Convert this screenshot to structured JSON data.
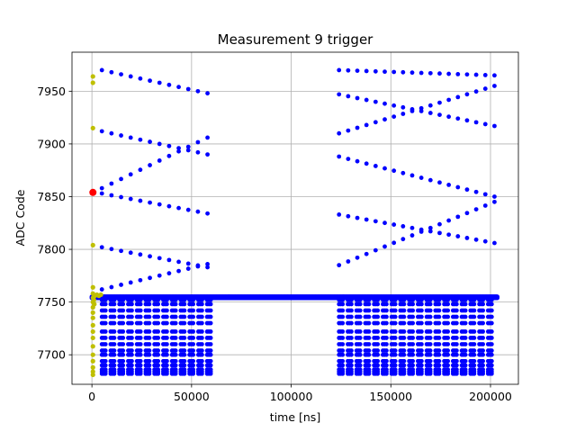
{
  "chart_data": {
    "type": "scatter",
    "title": "Measurement 9 trigger",
    "xlabel": "time [ns]",
    "ylabel": "ADC Code",
    "xlim": [
      -10000,
      214000
    ],
    "ylim": [
      7672,
      7987
    ],
    "xticks": [
      0,
      50000,
      100000,
      150000,
      200000
    ],
    "xtick_labels": [
      "0",
      "50000",
      "100000",
      "150000",
      "200000"
    ],
    "yticks": [
      7700,
      7750,
      7800,
      7850,
      7900,
      7950
    ],
    "ytick_labels": [
      "7700",
      "7750",
      "7800",
      "7850",
      "7900",
      "7950"
    ],
    "grid": true,
    "colors": {
      "series_main": "#0000ff",
      "series_early": "#bfbf00",
      "trigger": "#ff0000",
      "grid": "#b0b0b0"
    },
    "series": [
      {
        "color": "blue",
        "description_of_pattern": "baseline run at ~7755 across the full window, plus zig-zag ramp groups in 0-60000 ns and 124000-202000 ns",
        "baseline": {
          "x_start": 0,
          "x_end": 203500,
          "y": 7755
        },
        "ramp_groups": [
          {
            "x_start": 5000,
            "x_end": 58000,
            "n": 12,
            "y_start": 7970,
            "y_end": 7948,
            "mid": 7962
          },
          {
            "x_start": 5000,
            "x_end": 58000,
            "n": 12,
            "y_start": 7912,
            "y_end": 7890,
            "mid": 7897
          },
          {
            "x_start": 5000,
            "x_end": 58000,
            "n": 12,
            "y_start": 7858,
            "y_end": 7906,
            "mid": 7897
          },
          {
            "x_start": 5000,
            "x_end": 58000,
            "n": 12,
            "y_start": 7853,
            "y_end": 7834,
            "mid": 7843
          },
          {
            "x_start": 5000,
            "x_end": 58000,
            "n": 12,
            "y_start": 7802,
            "y_end": 7783,
            "mid": 7792
          },
          {
            "x_start": 5000,
            "x_end": 58000,
            "n": 12,
            "y_start": 7762,
            "y_end": 7786,
            "mid": 7774
          },
          {
            "x_start": 124000,
            "x_end": 202000,
            "n": 18,
            "y_start": 7970,
            "y_end": 7965,
            "mid": 7970
          },
          {
            "x_start": 124000,
            "x_end": 202000,
            "n": 18,
            "y_start": 7947,
            "y_end": 7917,
            "mid": 7933
          },
          {
            "x_start": 124000,
            "x_end": 202000,
            "n": 18,
            "y_start": 7910,
            "y_end": 7955,
            "mid": 7933
          },
          {
            "x_start": 124000,
            "x_end": 202000,
            "n": 18,
            "y_start": 7888,
            "y_end": 7850,
            "mid": 7868
          },
          {
            "x_start": 124000,
            "x_end": 202000,
            "n": 18,
            "y_start": 7833,
            "y_end": 7806,
            "mid": 7820
          },
          {
            "x_start": 124000,
            "x_end": 202000,
            "n": 18,
            "y_start": 7785,
            "y_end": 7845,
            "mid": 7815
          }
        ],
        "lower_columns": {
          "group1": {
            "x_start": 5000,
            "x_end": 58000,
            "spacing": 4400
          },
          "group2": {
            "x_start": 124000,
            "x_end": 202000,
            "spacing": 4400
          },
          "y_values": [
            7682,
            7684,
            7686,
            7690,
            7694,
            7700,
            7704,
            7710,
            7716,
            7722,
            7730,
            7736,
            7742,
            7748,
            7752
          ]
        }
      },
      {
        "color": "olive",
        "description_of_pattern": "early samples near x = 0",
        "points": [
          [
            500,
            7964
          ],
          [
            500,
            7958
          ],
          [
            500,
            7915
          ],
          [
            500,
            7804
          ],
          [
            500,
            7764
          ],
          [
            500,
            7758
          ],
          [
            500,
            7754
          ],
          [
            500,
            7750
          ],
          [
            500,
            7745
          ],
          [
            500,
            7740
          ],
          [
            500,
            7735
          ],
          [
            500,
            7728
          ],
          [
            500,
            7722
          ],
          [
            500,
            7716
          ],
          [
            500,
            7708
          ],
          [
            500,
            7700
          ],
          [
            500,
            7694
          ],
          [
            500,
            7688
          ],
          [
            500,
            7684
          ],
          [
            500,
            7681
          ],
          [
            1500,
            7756
          ],
          [
            2500,
            7757
          ],
          [
            3500,
            7756
          ],
          [
            4500,
            7757
          ],
          [
            1000,
            7752
          ],
          [
            1200,
            7748
          ]
        ]
      },
      {
        "color": "red",
        "description_of_pattern": "trigger point",
        "points": [
          [
            500,
            7854
          ]
        ]
      }
    ]
  }
}
